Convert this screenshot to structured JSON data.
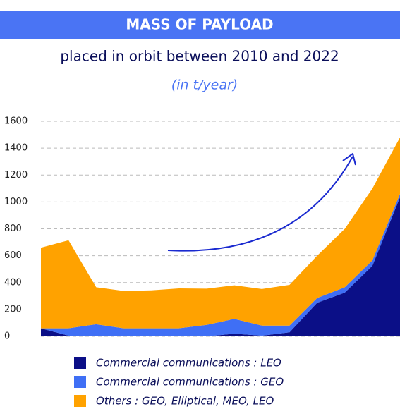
{
  "chart_data": {
    "type": "stacked-area",
    "title": "MASS OF PAYLOAD",
    "subtitle": "placed in orbit between 2010 and 2022",
    "y_label": "(in t/year)",
    "categories": [
      null,
      null,
      null,
      null,
      null,
      null,
      null,
      null,
      null,
      null,
      null,
      null,
      null,
      null
    ],
    "series": [
      {
        "name": "Commercial communications : LEO",
        "color": "#0b0f87",
        "values": [
          60,
          5,
          0,
          0,
          0,
          0,
          0,
          20,
          5,
          30,
          250,
          325,
          525,
          1035
        ]
      },
      {
        "name": "Commercial communications : GEO",
        "color": "#3f6ff5",
        "values": [
          0,
          55,
          90,
          60,
          60,
          60,
          85,
          110,
          75,
          50,
          35,
          40,
          40,
          25
        ]
      },
      {
        "name": "Others : GEO, Elliptical, MEO, LEO",
        "color": "#ffa200",
        "values": [
          600,
          655,
          275,
          278,
          282,
          297,
          270,
          250,
          272,
          303,
          315,
          435,
          535,
          420
        ]
      }
    ],
    "ylim": [
      0,
      1600
    ],
    "yticks": [
      0,
      200,
      400,
      600,
      800,
      1000,
      1200,
      1400,
      1600
    ],
    "grid": true
  }
}
